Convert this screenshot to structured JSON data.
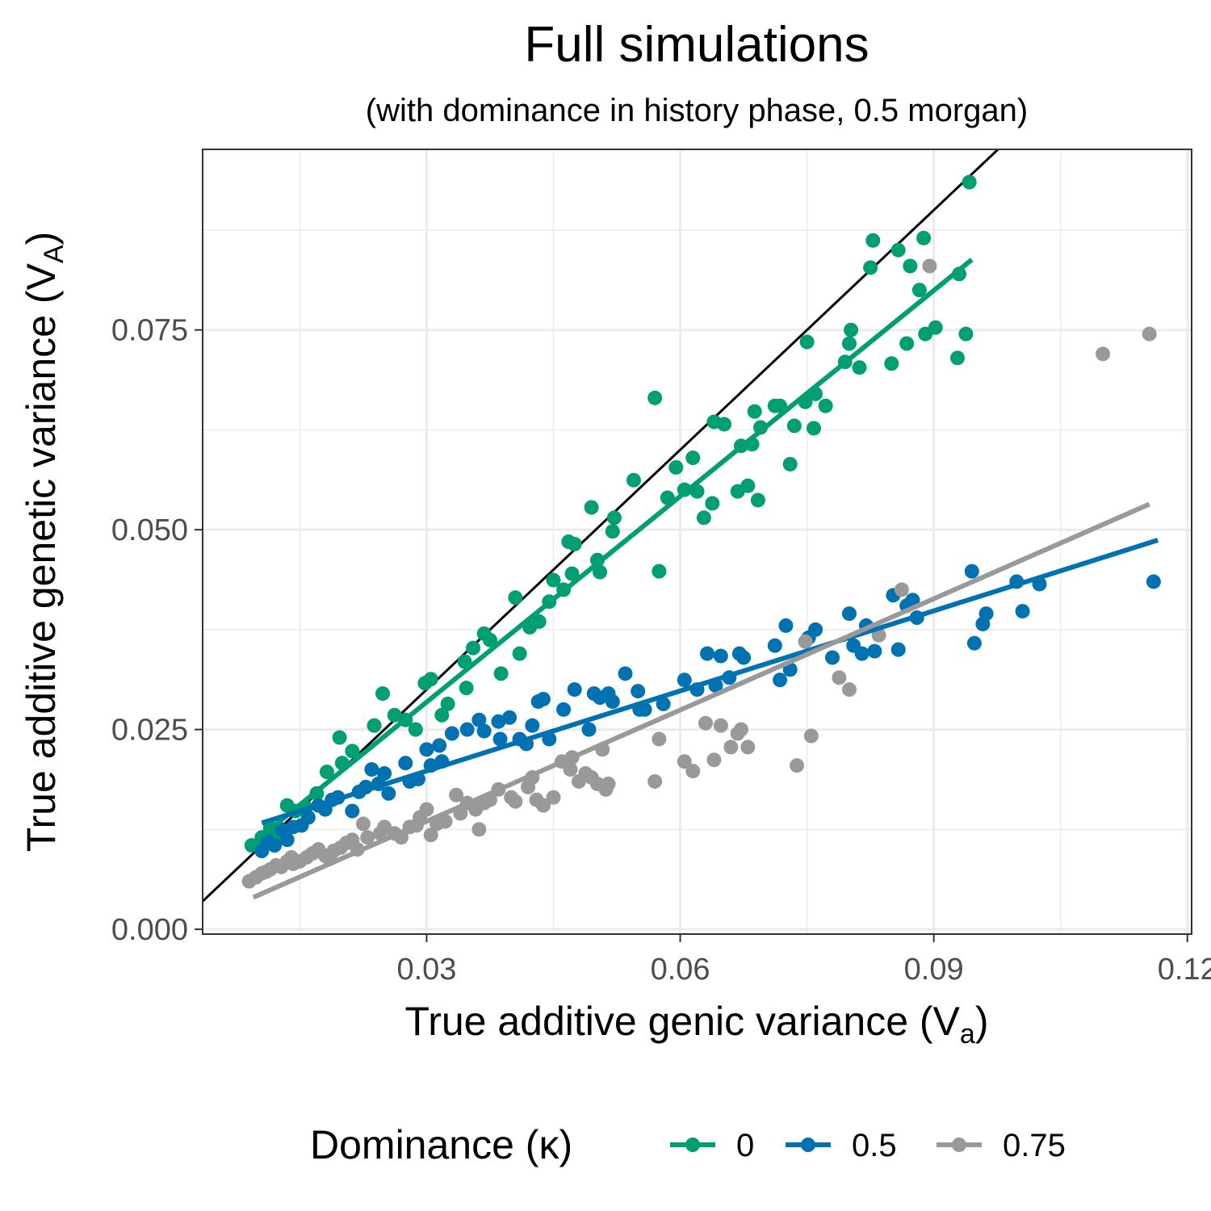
{
  "chart_data": {
    "type": "scatter",
    "title": "Full simulations",
    "subtitle": "(with dominance in history phase, 0.5 morgan)",
    "xlabel": {
      "main": "True additive genic variance (V",
      "sub": "a",
      "end": ")"
    },
    "ylabel": {
      "main": "True additive genetic variance (V",
      "sub": "A",
      "end": ")"
    },
    "xlim": [
      0.0035,
      0.1205
    ],
    "ylim": [
      -0.0006,
      0.0976
    ],
    "x_ticks": [
      0.03,
      0.06,
      0.09,
      0.12
    ],
    "x_tick_labels": [
      "0.03",
      "0.06",
      "0.09",
      "0.12"
    ],
    "y_ticks": [
      0.0,
      0.025,
      0.05,
      0.075
    ],
    "y_tick_labels": [
      "0.000",
      "0.025",
      "0.050",
      "0.075"
    ],
    "grid": true,
    "legend": {
      "title": "Dominance (κ)",
      "position": "bottom"
    },
    "reference_line": {
      "slope": 1,
      "intercept": 0,
      "color": "#000000"
    },
    "series": [
      {
        "name": "0",
        "color": "#009E73",
        "fit": {
          "x": [
            0.0105,
            0.0945
          ],
          "y": [
            0.0117,
            0.0838
          ]
        },
        "points": [
          [
            0.0093,
            0.0105
          ],
          [
            0.0105,
            0.0115
          ],
          [
            0.0115,
            0.0127
          ],
          [
            0.0125,
            0.0117
          ],
          [
            0.0135,
            0.0155
          ],
          [
            0.0145,
            0.0148
          ],
          [
            0.0157,
            0.0152
          ],
          [
            0.017,
            0.017
          ],
          [
            0.0182,
            0.0197
          ],
          [
            0.0197,
            0.024
          ],
          [
            0.02,
            0.0208
          ],
          [
            0.0212,
            0.0223
          ],
          [
            0.0238,
            0.0255
          ],
          [
            0.0248,
            0.0295
          ],
          [
            0.0262,
            0.0268
          ],
          [
            0.0275,
            0.0262
          ],
          [
            0.0287,
            0.025
          ],
          [
            0.0298,
            0.0308
          ],
          [
            0.0305,
            0.0313
          ],
          [
            0.0318,
            0.0268
          ],
          [
            0.0325,
            0.0282
          ],
          [
            0.0345,
            0.0335
          ],
          [
            0.0347,
            0.0302
          ],
          [
            0.0355,
            0.0352
          ],
          [
            0.0368,
            0.037
          ],
          [
            0.0375,
            0.0362
          ],
          [
            0.0388,
            0.032
          ],
          [
            0.0405,
            0.0415
          ],
          [
            0.041,
            0.0345
          ],
          [
            0.0422,
            0.0378
          ],
          [
            0.0433,
            0.0385
          ],
          [
            0.0445,
            0.041
          ],
          [
            0.045,
            0.0437
          ],
          [
            0.0462,
            0.0425
          ],
          [
            0.0468,
            0.0485
          ],
          [
            0.0472,
            0.0445
          ],
          [
            0.0475,
            0.0482
          ],
          [
            0.0495,
            0.0528
          ],
          [
            0.0502,
            0.0462
          ],
          [
            0.0505,
            0.0447
          ],
          [
            0.052,
            0.0498
          ],
          [
            0.0522,
            0.0515
          ],
          [
            0.0545,
            0.0562
          ],
          [
            0.057,
            0.0665
          ],
          [
            0.0575,
            0.0448
          ],
          [
            0.0585,
            0.054
          ],
          [
            0.0595,
            0.0578
          ],
          [
            0.0605,
            0.055
          ],
          [
            0.0615,
            0.059
          ],
          [
            0.062,
            0.0548
          ],
          [
            0.0628,
            0.0515
          ],
          [
            0.0638,
            0.0533
          ],
          [
            0.064,
            0.0635
          ],
          [
            0.0652,
            0.0632
          ],
          [
            0.0668,
            0.0548
          ],
          [
            0.0672,
            0.0605
          ],
          [
            0.068,
            0.0555
          ],
          [
            0.0685,
            0.0607
          ],
          [
            0.0688,
            0.0648
          ],
          [
            0.0692,
            0.0537
          ],
          [
            0.0695,
            0.0628
          ],
          [
            0.0712,
            0.0655
          ],
          [
            0.0718,
            0.0655
          ],
          [
            0.073,
            0.0582
          ],
          [
            0.0735,
            0.063
          ],
          [
            0.0748,
            0.066
          ],
          [
            0.075,
            0.0735
          ],
          [
            0.0758,
            0.0627
          ],
          [
            0.076,
            0.067
          ],
          [
            0.0772,
            0.0655
          ],
          [
            0.0795,
            0.071
          ],
          [
            0.08,
            0.0733
          ],
          [
            0.0802,
            0.075
          ],
          [
            0.0812,
            0.0703
          ],
          [
            0.0825,
            0.0828
          ],
          [
            0.0828,
            0.0862
          ],
          [
            0.085,
            0.0708
          ],
          [
            0.0858,
            0.085
          ],
          [
            0.0868,
            0.0733
          ],
          [
            0.0872,
            0.083
          ],
          [
            0.0883,
            0.08
          ],
          [
            0.0888,
            0.0865
          ],
          [
            0.089,
            0.0745
          ],
          [
            0.0902,
            0.0753
          ],
          [
            0.0928,
            0.0715
          ],
          [
            0.093,
            0.082
          ],
          [
            0.0938,
            0.0745
          ],
          [
            0.0942,
            0.0935
          ]
        ]
      },
      {
        "name": "0.5",
        "color": "#0072B2",
        "fit": {
          "x": [
            0.0105,
            0.1165
          ],
          "y": [
            0.0133,
            0.0487
          ]
        },
        "points": [
          [
            0.0105,
            0.0098
          ],
          [
            0.0112,
            0.011
          ],
          [
            0.012,
            0.0105
          ],
          [
            0.0128,
            0.0125
          ],
          [
            0.0135,
            0.0112
          ],
          [
            0.0142,
            0.0128
          ],
          [
            0.0152,
            0.013
          ],
          [
            0.016,
            0.014
          ],
          [
            0.0172,
            0.0155
          ],
          [
            0.018,
            0.015
          ],
          [
            0.0188,
            0.0162
          ],
          [
            0.0195,
            0.0165
          ],
          [
            0.0212,
            0.0148
          ],
          [
            0.022,
            0.0172
          ],
          [
            0.0228,
            0.0178
          ],
          [
            0.0235,
            0.02
          ],
          [
            0.0243,
            0.0182
          ],
          [
            0.025,
            0.0195
          ],
          [
            0.0255,
            0.017
          ],
          [
            0.0275,
            0.0208
          ],
          [
            0.028,
            0.0185
          ],
          [
            0.029,
            0.0188
          ],
          [
            0.03,
            0.0225
          ],
          [
            0.0305,
            0.0205
          ],
          [
            0.0315,
            0.023
          ],
          [
            0.0318,
            0.021
          ],
          [
            0.033,
            0.0245
          ],
          [
            0.0348,
            0.025
          ],
          [
            0.0362,
            0.0262
          ],
          [
            0.0368,
            0.0248
          ],
          [
            0.0385,
            0.026
          ],
          [
            0.0387,
            0.0238
          ],
          [
            0.0398,
            0.0265
          ],
          [
            0.041,
            0.0238
          ],
          [
            0.0418,
            0.0232
          ],
          [
            0.0425,
            0.0255
          ],
          [
            0.0432,
            0.0285
          ],
          [
            0.0438,
            0.0288
          ],
          [
            0.0445,
            0.0238
          ],
          [
            0.0462,
            0.0275
          ],
          [
            0.0475,
            0.03
          ],
          [
            0.0492,
            0.025
          ],
          [
            0.0498,
            0.0295
          ],
          [
            0.0505,
            0.029
          ],
          [
            0.0515,
            0.0295
          ],
          [
            0.052,
            0.0285
          ],
          [
            0.0535,
            0.032
          ],
          [
            0.055,
            0.0298
          ],
          [
            0.0552,
            0.0275
          ],
          [
            0.0558,
            0.0275
          ],
          [
            0.058,
            0.0282
          ],
          [
            0.0605,
            0.0312
          ],
          [
            0.062,
            0.03
          ],
          [
            0.0632,
            0.0345
          ],
          [
            0.0642,
            0.0305
          ],
          [
            0.0648,
            0.0342
          ],
          [
            0.0658,
            0.0315
          ],
          [
            0.067,
            0.0345
          ],
          [
            0.0675,
            0.034
          ],
          [
            0.0712,
            0.0355
          ],
          [
            0.0718,
            0.0312
          ],
          [
            0.0725,
            0.038
          ],
          [
            0.073,
            0.0325
          ],
          [
            0.0752,
            0.0365
          ],
          [
            0.076,
            0.0375
          ],
          [
            0.078,
            0.034
          ],
          [
            0.08,
            0.0395
          ],
          [
            0.0805,
            0.0355
          ],
          [
            0.0815,
            0.0345
          ],
          [
            0.082,
            0.038
          ],
          [
            0.083,
            0.0348
          ],
          [
            0.0852,
            0.0418
          ],
          [
            0.0858,
            0.035
          ],
          [
            0.0868,
            0.0405
          ],
          [
            0.0875,
            0.0412
          ],
          [
            0.088,
            0.039
          ],
          [
            0.0945,
            0.0448
          ],
          [
            0.0948,
            0.0358
          ],
          [
            0.0958,
            0.0382
          ],
          [
            0.0962,
            0.0395
          ],
          [
            0.0998,
            0.0435
          ],
          [
            0.1005,
            0.0398
          ],
          [
            0.1025,
            0.0432
          ],
          [
            0.116,
            0.0435
          ]
        ]
      },
      {
        "name": "0.75",
        "color": "#999999",
        "fit": {
          "x": [
            0.0095,
            0.1155
          ],
          "y": [
            0.004,
            0.0532
          ]
        },
        "points": [
          [
            0.009,
            0.006
          ],
          [
            0.0098,
            0.0065
          ],
          [
            0.0105,
            0.007
          ],
          [
            0.011,
            0.0072
          ],
          [
            0.0115,
            0.0075
          ],
          [
            0.0122,
            0.008
          ],
          [
            0.0128,
            0.0078
          ],
          [
            0.0135,
            0.0085
          ],
          [
            0.014,
            0.009
          ],
          [
            0.0142,
            0.0082
          ],
          [
            0.015,
            0.0085
          ],
          [
            0.0158,
            0.009
          ],
          [
            0.0165,
            0.0095
          ],
          [
            0.0172,
            0.01
          ],
          [
            0.018,
            0.0092
          ],
          [
            0.0185,
            0.0088
          ],
          [
            0.019,
            0.0098
          ],
          [
            0.0198,
            0.0102
          ],
          [
            0.0205,
            0.0108
          ],
          [
            0.0212,
            0.0112
          ],
          [
            0.0218,
            0.01
          ],
          [
            0.0225,
            0.0132
          ],
          [
            0.023,
            0.0115
          ],
          [
            0.0245,
            0.012
          ],
          [
            0.025,
            0.0128
          ],
          [
            0.0262,
            0.012
          ],
          [
            0.027,
            0.0115
          ],
          [
            0.028,
            0.0128
          ],
          [
            0.0288,
            0.013
          ],
          [
            0.0292,
            0.014
          ],
          [
            0.03,
            0.015
          ],
          [
            0.0305,
            0.0118
          ],
          [
            0.0312,
            0.0132
          ],
          [
            0.0322,
            0.0135
          ],
          [
            0.0335,
            0.0168
          ],
          [
            0.034,
            0.0145
          ],
          [
            0.0348,
            0.0158
          ],
          [
            0.0358,
            0.015
          ],
          [
            0.0362,
            0.0125
          ],
          [
            0.0368,
            0.0158
          ],
          [
            0.0375,
            0.0162
          ],
          [
            0.0385,
            0.0175
          ],
          [
            0.04,
            0.0165
          ],
          [
            0.0405,
            0.016
          ],
          [
            0.042,
            0.0178
          ],
          [
            0.0425,
            0.019
          ],
          [
            0.043,
            0.0162
          ],
          [
            0.0438,
            0.0155
          ],
          [
            0.045,
            0.0165
          ],
          [
            0.046,
            0.021
          ],
          [
            0.047,
            0.02
          ],
          [
            0.0472,
            0.0215
          ],
          [
            0.048,
            0.0185
          ],
          [
            0.0488,
            0.0195
          ],
          [
            0.0495,
            0.019
          ],
          [
            0.0502,
            0.0182
          ],
          [
            0.0508,
            0.0225
          ],
          [
            0.0512,
            0.0175
          ],
          [
            0.0515,
            0.0182
          ],
          [
            0.057,
            0.0185
          ],
          [
            0.0575,
            0.0238
          ],
          [
            0.0605,
            0.021
          ],
          [
            0.0615,
            0.0198
          ],
          [
            0.063,
            0.0258
          ],
          [
            0.064,
            0.0212
          ],
          [
            0.0648,
            0.0255
          ],
          [
            0.066,
            0.0228
          ],
          [
            0.0668,
            0.0245
          ],
          [
            0.0672,
            0.025
          ],
          [
            0.068,
            0.0228
          ],
          [
            0.0738,
            0.0205
          ],
          [
            0.0748,
            0.036
          ],
          [
            0.0755,
            0.0242
          ],
          [
            0.0788,
            0.0315
          ],
          [
            0.08,
            0.03
          ],
          [
            0.0835,
            0.0368
          ],
          [
            0.0862,
            0.0425
          ],
          [
            0.0895,
            0.083
          ],
          [
            0.11,
            0.072
          ],
          [
            0.1155,
            0.0745
          ]
        ]
      }
    ]
  }
}
